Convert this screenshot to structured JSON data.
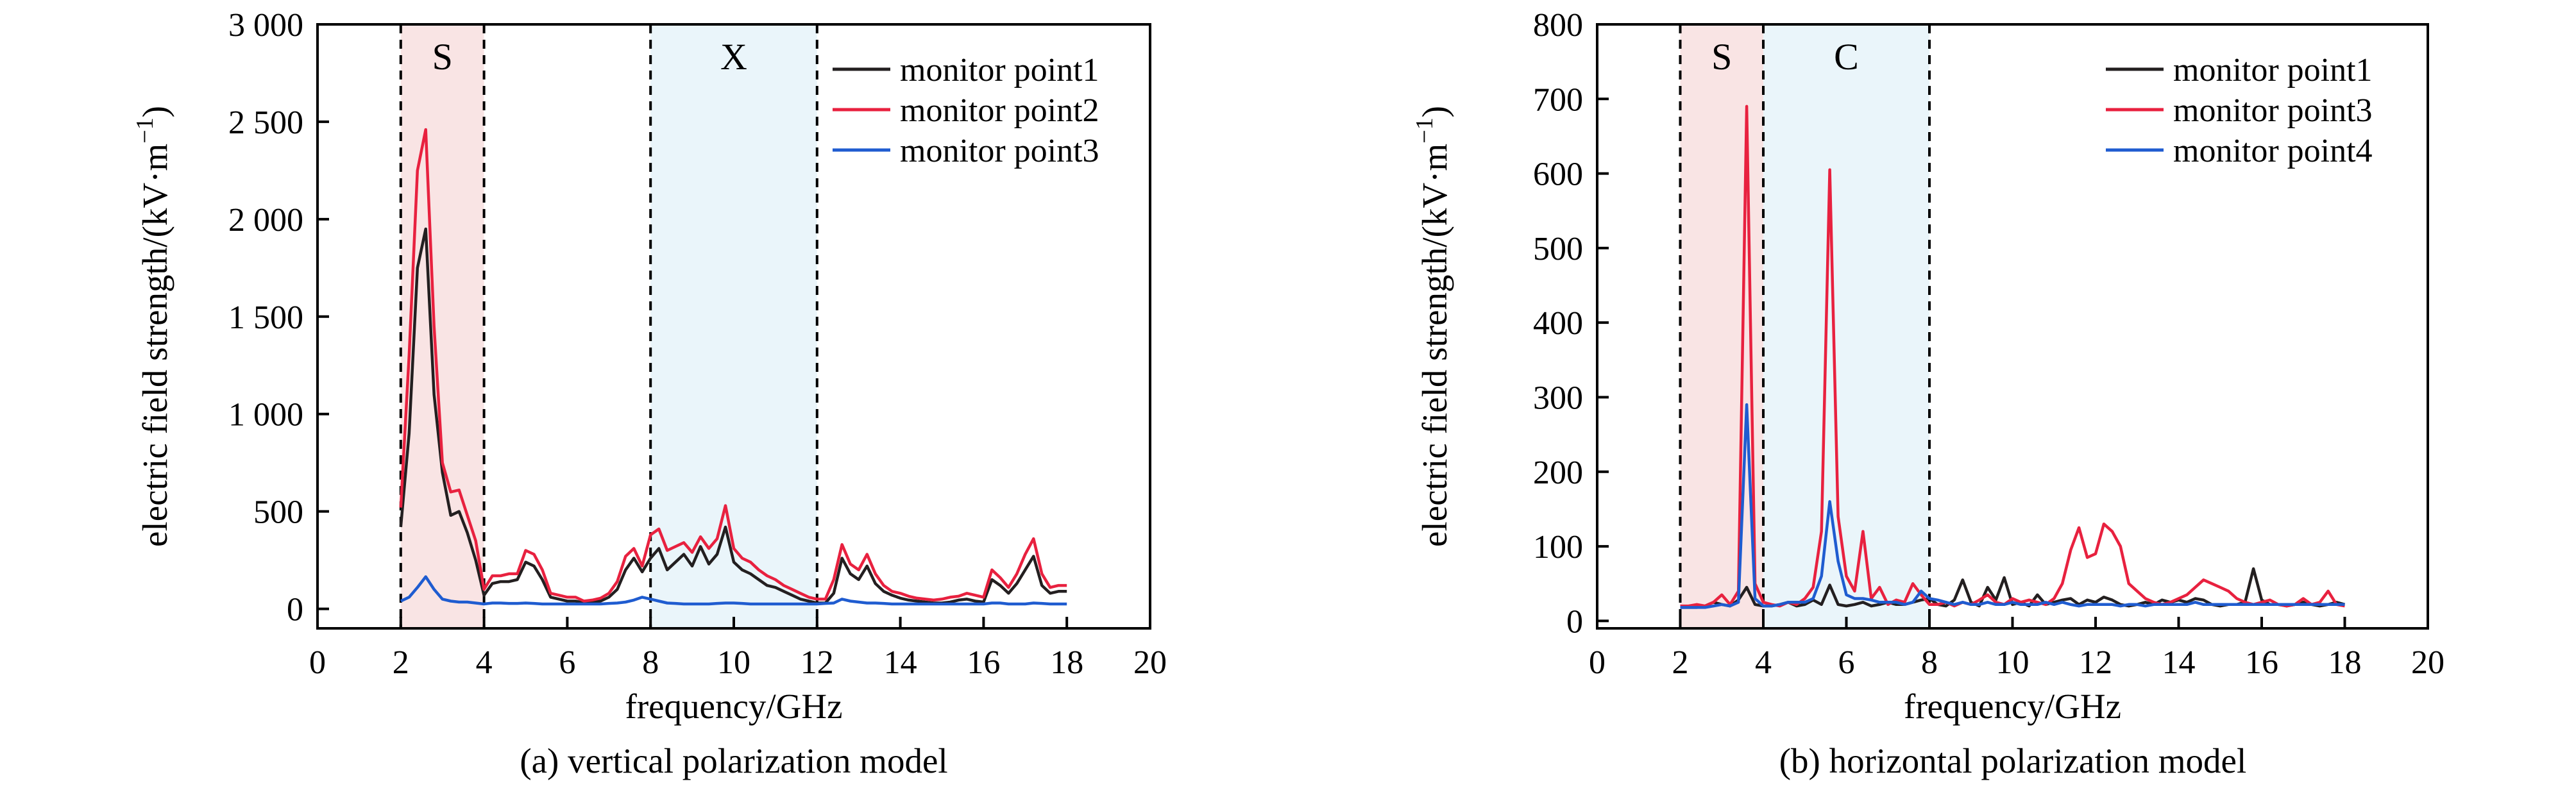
{
  "chart_data": [
    {
      "type": "line",
      "caption": "(a) vertical polarization model",
      "xlabel": "frequency/GHz",
      "ylabel": "electric field strength/(kV·m",
      "ylabel_unit_exp": "−1",
      "ylabel_close": ")",
      "xlim": [
        0,
        20
      ],
      "ylim": [
        -100,
        3000
      ],
      "xticks": [
        0,
        2,
        4,
        6,
        8,
        10,
        12,
        14,
        16,
        18,
        20
      ],
      "xtick_labels": [
        "0",
        "2",
        "4",
        "6",
        "8",
        "10",
        "12",
        "14",
        "16",
        "18",
        "20"
      ],
      "yticks": [
        0,
        500,
        1000,
        1500,
        2000,
        2500,
        3000
      ],
      "ytick_labels": [
        "0",
        "500",
        "1 000",
        "1 500",
        "2 000",
        "2 500",
        "3 000"
      ],
      "grid": false,
      "legend_position": "top-right",
      "bands": [
        {
          "label": "S",
          "x0": 2,
          "x1": 4,
          "color": "#f9e4e4"
        },
        {
          "label": "X",
          "x0": 8,
          "x1": 12,
          "color": "#eaf5fa"
        }
      ],
      "series": [
        {
          "name": "monitor point1",
          "color": "#231f20",
          "x": [
            2,
            2.2,
            2.4,
            2.6,
            2.8,
            3,
            3.2,
            3.4,
            3.6,
            3.8,
            4,
            4.2,
            4.4,
            4.6,
            4.8,
            5,
            5.2,
            5.4,
            5.6,
            5.8,
            6,
            6.2,
            6.4,
            6.6,
            6.8,
            7,
            7.2,
            7.4,
            7.6,
            7.8,
            8,
            8.2,
            8.4,
            8.6,
            8.8,
            9,
            9.2,
            9.4,
            9.6,
            9.8,
            10,
            10.2,
            10.4,
            10.6,
            10.8,
            11,
            11.2,
            11.4,
            11.6,
            11.8,
            12,
            12.2,
            12.4,
            12.6,
            12.8,
            13,
            13.2,
            13.4,
            13.6,
            13.8,
            14,
            14.2,
            14.4,
            14.6,
            14.8,
            15,
            15.2,
            15.4,
            15.6,
            15.8,
            16,
            16.2,
            16.4,
            16.6,
            16.8,
            17,
            17.2,
            17.4,
            17.6,
            17.8,
            18
          ],
          "values": [
            420,
            900,
            1750,
            1950,
            1100,
            700,
            480,
            500,
            390,
            250,
            70,
            130,
            140,
            140,
            150,
            240,
            220,
            150,
            60,
            50,
            40,
            40,
            30,
            35,
            40,
            60,
            100,
            200,
            260,
            190,
            260,
            310,
            200,
            240,
            280,
            220,
            320,
            230,
            280,
            420,
            240,
            200,
            180,
            150,
            120,
            110,
            90,
            70,
            50,
            40,
            30,
            30,
            80,
            260,
            180,
            150,
            220,
            130,
            90,
            70,
            55,
            45,
            40,
            35,
            30,
            30,
            35,
            45,
            50,
            40,
            35,
            150,
            120,
            80,
            130,
            200,
            270,
            120,
            80,
            90,
            90
          ]
        },
        {
          "name": "monitor point2",
          "color": "#e8213f",
          "x": [
            2,
            2.2,
            2.4,
            2.6,
            2.8,
            3,
            3.2,
            3.4,
            3.6,
            3.8,
            4,
            4.2,
            4.4,
            4.6,
            4.8,
            5,
            5.2,
            5.4,
            5.6,
            5.8,
            6,
            6.2,
            6.4,
            6.6,
            6.8,
            7,
            7.2,
            7.4,
            7.6,
            7.8,
            8,
            8.2,
            8.4,
            8.6,
            8.8,
            9,
            9.2,
            9.4,
            9.6,
            9.8,
            10,
            10.2,
            10.4,
            10.6,
            10.8,
            11,
            11.2,
            11.4,
            11.6,
            11.8,
            12,
            12.2,
            12.4,
            12.6,
            12.8,
            13,
            13.2,
            13.4,
            13.6,
            13.8,
            14,
            14.2,
            14.4,
            14.6,
            14.8,
            15,
            15.2,
            15.4,
            15.6,
            15.8,
            16,
            16.2,
            16.4,
            16.6,
            16.8,
            17,
            17.2,
            17.4,
            17.6,
            17.8,
            18
          ],
          "values": [
            520,
            1300,
            2250,
            2460,
            1450,
            750,
            600,
            610,
            480,
            350,
            100,
            170,
            170,
            180,
            180,
            300,
            280,
            200,
            80,
            70,
            60,
            60,
            40,
            45,
            55,
            80,
            140,
            270,
            310,
            220,
            380,
            410,
            300,
            320,
            340,
            290,
            370,
            310,
            360,
            530,
            310,
            260,
            240,
            200,
            170,
            150,
            120,
            100,
            80,
            60,
            50,
            50,
            150,
            330,
            230,
            200,
            280,
            180,
            120,
            90,
            80,
            65,
            55,
            50,
            45,
            50,
            60,
            65,
            80,
            70,
            60,
            200,
            160,
            110,
            180,
            280,
            360,
            180,
            110,
            120,
            120
          ]
        },
        {
          "name": "monitor point3",
          "color": "#1f5cd0",
          "x": [
            2,
            2.2,
            2.4,
            2.6,
            2.8,
            3,
            3.2,
            3.4,
            3.6,
            3.8,
            4,
            4.2,
            4.4,
            4.6,
            4.8,
            5,
            5.2,
            5.4,
            5.6,
            5.8,
            6,
            6.2,
            6.4,
            6.6,
            6.8,
            7,
            7.2,
            7.4,
            7.6,
            7.8,
            8,
            8.2,
            8.4,
            8.6,
            8.8,
            9,
            9.2,
            9.4,
            9.6,
            9.8,
            10,
            10.2,
            10.4,
            10.6,
            10.8,
            11,
            11.2,
            11.4,
            11.6,
            11.8,
            12,
            12.2,
            12.4,
            12.6,
            12.8,
            13,
            13.2,
            13.4,
            13.6,
            13.8,
            14,
            14.2,
            14.4,
            14.6,
            14.8,
            15,
            15.2,
            15.4,
            15.6,
            15.8,
            16,
            16.2,
            16.4,
            16.6,
            16.8,
            17,
            17.2,
            17.4,
            17.6,
            17.8,
            18
          ],
          "values": [
            40,
            60,
            110,
            165,
            100,
            50,
            40,
            35,
            35,
            30,
            25,
            30,
            30,
            28,
            28,
            30,
            28,
            25,
            25,
            25,
            25,
            25,
            25,
            25,
            25,
            28,
            30,
            35,
            45,
            60,
            50,
            40,
            30,
            28,
            25,
            25,
            25,
            25,
            28,
            30,
            30,
            28,
            25,
            25,
            25,
            25,
            25,
            25,
            25,
            25,
            25,
            28,
            30,
            50,
            40,
            35,
            30,
            30,
            28,
            25,
            25,
            25,
            25,
            25,
            25,
            25,
            25,
            25,
            25,
            25,
            25,
            30,
            30,
            25,
            25,
            25,
            30,
            28,
            25,
            25,
            25
          ]
        }
      ]
    },
    {
      "type": "line",
      "caption": "(b) horizontal polarization model",
      "xlabel": "frequency/GHz",
      "ylabel": "electric field strength/(kV·m",
      "ylabel_unit_exp": "−1",
      "ylabel_close": ")",
      "xlim": [
        0,
        20
      ],
      "ylim": [
        -10,
        800
      ],
      "xticks": [
        0,
        2,
        4,
        6,
        8,
        10,
        12,
        14,
        16,
        18,
        20
      ],
      "xtick_labels": [
        "0",
        "2",
        "4",
        "6",
        "8",
        "10",
        "12",
        "14",
        "16",
        "18",
        "20"
      ],
      "yticks": [
        0,
        100,
        200,
        300,
        400,
        500,
        600,
        700,
        800
      ],
      "ytick_labels": [
        "0",
        "100",
        "200",
        "300",
        "400",
        "500",
        "600",
        "700",
        "800"
      ],
      "grid": false,
      "legend_position": "top-right",
      "bands": [
        {
          "label": "S",
          "x0": 2,
          "x1": 4,
          "color": "#f9e4e4"
        },
        {
          "label": "C",
          "x0": 4,
          "x1": 8,
          "color": "#eaf5fa"
        }
      ],
      "series": [
        {
          "name": "monitor point1",
          "color": "#231f20",
          "x": [
            2,
            2.2,
            2.4,
            2.6,
            2.8,
            3,
            3.2,
            3.4,
            3.6,
            3.8,
            4,
            4.2,
            4.4,
            4.6,
            4.8,
            5,
            5.2,
            5.4,
            5.6,
            5.8,
            6,
            6.2,
            6.4,
            6.6,
            6.8,
            7,
            7.2,
            7.4,
            7.6,
            7.8,
            8,
            8.2,
            8.4,
            8.6,
            8.8,
            9,
            9.2,
            9.4,
            9.6,
            9.8,
            10,
            10.2,
            10.4,
            10.6,
            10.8,
            11,
            11.2,
            11.4,
            11.6,
            11.8,
            12,
            12.2,
            12.4,
            12.6,
            12.8,
            13,
            13.2,
            13.4,
            13.6,
            13.8,
            14,
            14.2,
            14.4,
            14.6,
            14.8,
            15,
            15.2,
            15.4,
            15.6,
            15.8,
            16,
            16.2,
            16.4,
            16.6,
            16.8,
            17,
            17.2,
            17.4,
            17.6,
            17.8,
            18
          ],
          "values": [
            18,
            18,
            18,
            20,
            25,
            22,
            20,
            28,
            45,
            22,
            20,
            20,
            22,
            25,
            20,
            22,
            28,
            22,
            48,
            22,
            20,
            22,
            25,
            20,
            22,
            25,
            22,
            22,
            25,
            28,
            30,
            22,
            20,
            28,
            55,
            25,
            20,
            45,
            28,
            58,
            22,
            25,
            20,
            35,
            22,
            25,
            28,
            30,
            22,
            28,
            25,
            32,
            28,
            22,
            20,
            22,
            25,
            22,
            28,
            25,
            28,
            25,
            30,
            28,
            22,
            20,
            22,
            22,
            25,
            70,
            28,
            22,
            22,
            20,
            22,
            25,
            22,
            20,
            22,
            25,
            22
          ]
        },
        {
          "name": "monitor point3",
          "color": "#e8213f",
          "x": [
            2,
            2.2,
            2.4,
            2.6,
            2.8,
            3,
            3.2,
            3.4,
            3.6,
            3.8,
            4,
            4.2,
            4.4,
            4.6,
            4.8,
            5,
            5.2,
            5.4,
            5.6,
            5.8,
            6,
            6.2,
            6.4,
            6.6,
            6.8,
            7,
            7.2,
            7.4,
            7.6,
            7.8,
            8,
            8.2,
            8.4,
            8.6,
            8.8,
            9,
            9.2,
            9.4,
            9.6,
            9.8,
            10,
            10.2,
            10.4,
            10.6,
            10.8,
            11,
            11.2,
            11.4,
            11.6,
            11.8,
            12,
            12.2,
            12.4,
            12.6,
            12.8,
            13,
            13.2,
            13.4,
            13.6,
            13.8,
            14,
            14.2,
            14.4,
            14.6,
            14.8,
            15,
            15.2,
            15.4,
            15.6,
            15.8,
            16,
            16.2,
            16.4,
            16.6,
            16.8,
            17,
            17.2,
            17.4,
            17.6,
            17.8,
            18
          ],
          "values": [
            20,
            20,
            22,
            20,
            25,
            35,
            22,
            40,
            690,
            50,
            25,
            22,
            20,
            25,
            22,
            30,
            45,
            120,
            605,
            140,
            60,
            40,
            120,
            30,
            45,
            22,
            28,
            25,
            50,
            35,
            22,
            22,
            25,
            20,
            25,
            22,
            28,
            35,
            25,
            22,
            30,
            25,
            28,
            25,
            22,
            30,
            50,
            95,
            125,
            85,
            90,
            130,
            120,
            100,
            50,
            40,
            30,
            25,
            22,
            25,
            30,
            35,
            45,
            55,
            50,
            45,
            40,
            30,
            25,
            22,
            25,
            28,
            22,
            20,
            22,
            30,
            22,
            25,
            40,
            22,
            20
          ]
        },
        {
          "name": "monitor point4",
          "color": "#1f5cd0",
          "x": [
            2,
            2.2,
            2.4,
            2.6,
            2.8,
            3,
            3.2,
            3.4,
            3.6,
            3.8,
            4,
            4.2,
            4.4,
            4.6,
            4.8,
            5,
            5.2,
            5.4,
            5.6,
            5.8,
            6,
            6.2,
            6.4,
            6.6,
            6.8,
            7,
            7.2,
            7.4,
            7.6,
            7.8,
            8,
            8.2,
            8.4,
            8.6,
            8.8,
            9,
            9.2,
            9.4,
            9.6,
            9.8,
            10,
            10.2,
            10.4,
            10.6,
            10.8,
            11,
            11.2,
            11.4,
            11.6,
            11.8,
            12,
            12.2,
            12.4,
            12.6,
            12.8,
            13,
            13.2,
            13.4,
            13.6,
            13.8,
            14,
            14.2,
            14.4,
            14.6,
            14.8,
            15,
            15.2,
            15.4,
            15.6,
            15.8,
            16,
            16.2,
            16.4,
            16.6,
            16.8,
            17,
            17.2,
            17.4,
            17.6,
            17.8,
            18
          ],
          "values": [
            18,
            18,
            18,
            18,
            20,
            22,
            20,
            25,
            290,
            30,
            20,
            20,
            22,
            25,
            25,
            25,
            30,
            60,
            160,
            80,
            35,
            30,
            30,
            28,
            25,
            25,
            25,
            22,
            25,
            40,
            30,
            28,
            25,
            22,
            25,
            22,
            22,
            25,
            22,
            22,
            25,
            22,
            22,
            22,
            25,
            22,
            25,
            22,
            20,
            22,
            22,
            22,
            22,
            20,
            22,
            22,
            20,
            22,
            22,
            22,
            22,
            22,
            25,
            22,
            22,
            22,
            22,
            22,
            22,
            22,
            22,
            22,
            22,
            22,
            22,
            22,
            22,
            22,
            22,
            22,
            22
          ]
        }
      ]
    }
  ]
}
